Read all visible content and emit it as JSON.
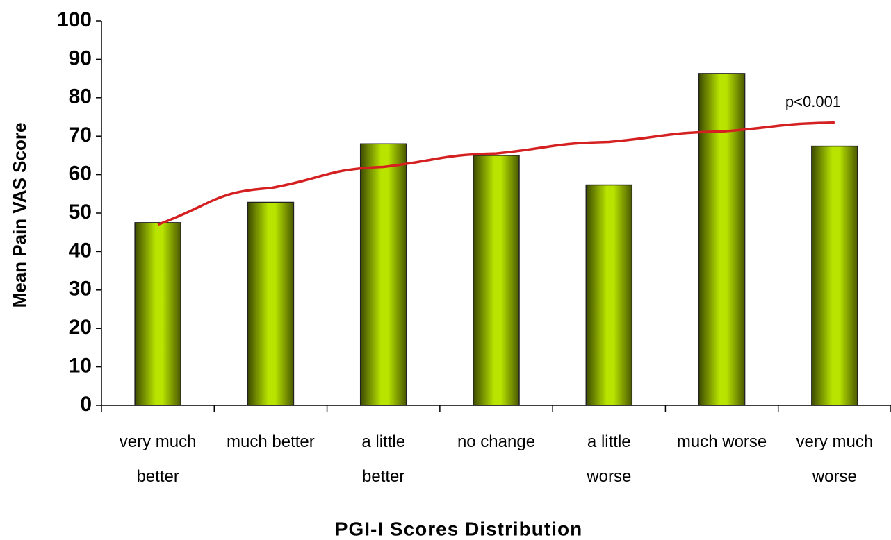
{
  "chart_data": {
    "type": "bar",
    "ylabel": "Mean Pain VAS Score",
    "xlabel": "PGI-I Scores Distribution",
    "categories": [
      "very much\nbetter",
      "much better",
      "a little\nbetter",
      "no change",
      "a little\nworse",
      "much worse",
      "very much\nworse"
    ],
    "values": [
      47.5,
      52.8,
      68,
      65,
      57.3,
      86.3,
      67.4
    ],
    "color": "#b8e400",
    "trendline": {
      "color": "#d42020",
      "values": [
        47,
        56.5,
        62,
        65.5,
        68.5,
        71.2,
        73.5
      ]
    },
    "annotation": "p<0.001",
    "ylim": [
      0,
      100
    ],
    "yticks": [
      0,
      10,
      20,
      30,
      40,
      50,
      60,
      70,
      80,
      90,
      100
    ],
    "grid": false
  }
}
